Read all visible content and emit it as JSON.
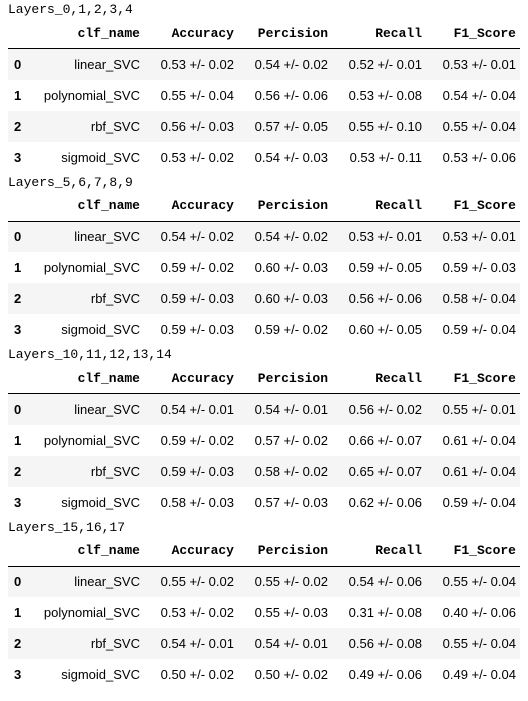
{
  "columns": [
    "",
    "clf_name",
    "Accuracy",
    "Percision",
    "Recall",
    "F1_Score"
  ],
  "sections": [
    {
      "title": "Layers_0,1,2,3,4",
      "rows": [
        [
          "0",
          "linear_SVC",
          "0.53 +/- 0.02",
          "0.54 +/- 0.02",
          "0.52 +/- 0.01",
          "0.53 +/- 0.01"
        ],
        [
          "1",
          "polynomial_SVC",
          "0.55 +/- 0.04",
          "0.56 +/- 0.06",
          "0.53 +/- 0.08",
          "0.54 +/- 0.04"
        ],
        [
          "2",
          "rbf_SVC",
          "0.56 +/- 0.03",
          "0.57 +/- 0.05",
          "0.55 +/- 0.10",
          "0.55 +/- 0.04"
        ],
        [
          "3",
          "sigmoid_SVC",
          "0.53 +/- 0.02",
          "0.54 +/- 0.03",
          "0.53 +/- 0.11",
          "0.53 +/- 0.06"
        ]
      ]
    },
    {
      "title": "Layers_5,6,7,8,9",
      "rows": [
        [
          "0",
          "linear_SVC",
          "0.54 +/- 0.02",
          "0.54 +/- 0.02",
          "0.53 +/- 0.01",
          "0.53 +/- 0.01"
        ],
        [
          "1",
          "polynomial_SVC",
          "0.59 +/- 0.02",
          "0.60 +/- 0.03",
          "0.59 +/- 0.05",
          "0.59 +/- 0.03"
        ],
        [
          "2",
          "rbf_SVC",
          "0.59 +/- 0.03",
          "0.60 +/- 0.03",
          "0.56 +/- 0.06",
          "0.58 +/- 0.04"
        ],
        [
          "3",
          "sigmoid_SVC",
          "0.59 +/- 0.03",
          "0.59 +/- 0.02",
          "0.60 +/- 0.05",
          "0.59 +/- 0.04"
        ]
      ]
    },
    {
      "title": "Layers_10,11,12,13,14",
      "rows": [
        [
          "0",
          "linear_SVC",
          "0.54 +/- 0.01",
          "0.54 +/- 0.01",
          "0.56 +/- 0.02",
          "0.55 +/- 0.01"
        ],
        [
          "1",
          "polynomial_SVC",
          "0.59 +/- 0.02",
          "0.57 +/- 0.02",
          "0.66 +/- 0.07",
          "0.61 +/- 0.04"
        ],
        [
          "2",
          "rbf_SVC",
          "0.59 +/- 0.03",
          "0.58 +/- 0.02",
          "0.65 +/- 0.07",
          "0.61 +/- 0.04"
        ],
        [
          "3",
          "sigmoid_SVC",
          "0.58 +/- 0.03",
          "0.57 +/- 0.03",
          "0.62 +/- 0.06",
          "0.59 +/- 0.04"
        ]
      ]
    },
    {
      "title": "Layers_15,16,17",
      "rows": [
        [
          "0",
          "linear_SVC",
          "0.55 +/- 0.02",
          "0.55 +/- 0.02",
          "0.54 +/- 0.06",
          "0.55 +/- 0.04"
        ],
        [
          "1",
          "polynomial_SVC",
          "0.53 +/- 0.02",
          "0.55 +/- 0.03",
          "0.31 +/- 0.08",
          "0.40 +/- 0.06"
        ],
        [
          "2",
          "rbf_SVC",
          "0.54 +/- 0.01",
          "0.54 +/- 0.01",
          "0.56 +/- 0.08",
          "0.55 +/- 0.04"
        ],
        [
          "3",
          "sigmoid_SVC",
          "0.50 +/- 0.02",
          "0.50 +/- 0.02",
          "0.49 +/- 0.06",
          "0.49 +/- 0.04"
        ]
      ]
    }
  ]
}
